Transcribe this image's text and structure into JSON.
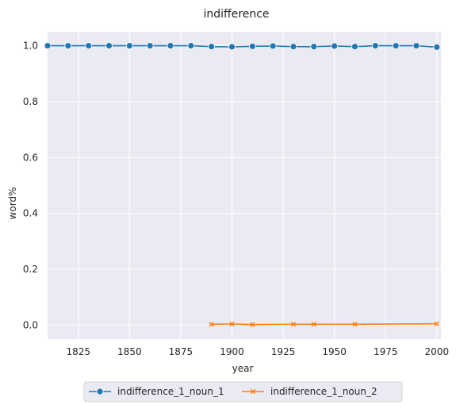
{
  "chart_data": {
    "type": "line",
    "title": "indifference",
    "xlabel": "year",
    "ylabel": "word%",
    "xlim": [
      1810,
      2002
    ],
    "ylim": [
      -0.05,
      1.05
    ],
    "xticks": [
      1825,
      1850,
      1875,
      1900,
      1925,
      1950,
      1975,
      2000
    ],
    "yticks": [
      0.0,
      0.2,
      0.4,
      0.6,
      0.8,
      1.0
    ],
    "yticks_labels": [
      "0.0",
      "0.2",
      "0.4",
      "0.6",
      "0.8",
      "1.0"
    ],
    "grid": true,
    "legend_placement": "bottom-center",
    "series": [
      {
        "name": "indifference_1_noun_1",
        "color": "#1f77b4",
        "marker": "circle",
        "x": [
          1810,
          1820,
          1830,
          1840,
          1850,
          1860,
          1870,
          1880,
          1890,
          1900,
          1910,
          1920,
          1930,
          1940,
          1950,
          1960,
          1970,
          1980,
          1990,
          2000
        ],
        "y": [
          1.0,
          1.0,
          1.0,
          1.0,
          1.0,
          1.0,
          1.0,
          1.0,
          0.997,
          0.996,
          0.998,
          0.999,
          0.997,
          0.997,
          0.999,
          0.997,
          1.0,
          1.0,
          1.0,
          0.995
        ]
      },
      {
        "name": "indifference_1_noun_2",
        "color": "#ff7f0e",
        "marker": "x",
        "x": [
          1890,
          1900,
          1910,
          1930,
          1940,
          1960,
          2000
        ],
        "y": [
          0.003,
          0.004,
          0.002,
          0.003,
          0.003,
          0.003,
          0.005
        ]
      }
    ]
  }
}
